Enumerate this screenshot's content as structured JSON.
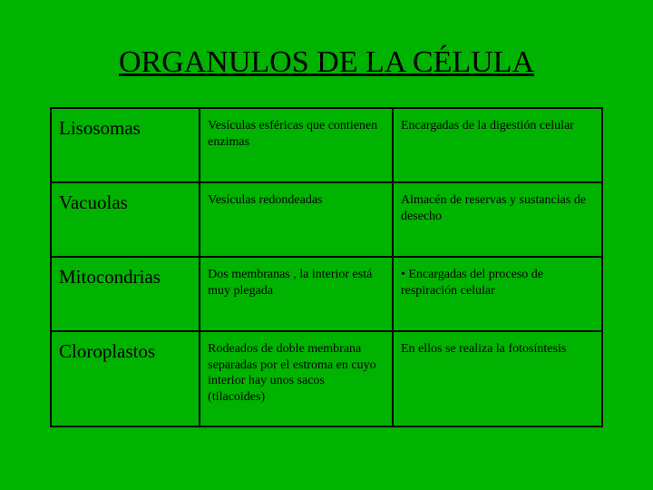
{
  "title": "ORGANULOS DE LA CÉLULA",
  "background_color": "#00b300",
  "border_color": "#000000",
  "text_color": "#000000",
  "title_fontsize": 34,
  "name_fontsize": 21,
  "cell_fontsize": 14,
  "columns": [
    "name",
    "description",
    "function"
  ],
  "rows": [
    {
      "name": "Lisosomas",
      "description": "Vesículas esféricas que contienen enzimas",
      "function": "Encargadas de la digestión celular"
    },
    {
      "name": "Vacuolas",
      "description": "Vesículas redondeadas",
      "function": "Almacén de reservas y sustancias de desecho"
    },
    {
      "name": "Mitocondrias",
      "description": "Dos membranas , la interior está muy plegada",
      "function": "• Encargadas del proceso de respiración celular"
    },
    {
      "name": "Cloroplastos",
      "description": "Rodeados de doble membrana separadas por el estroma en cuyo interior hay unos sacos (tilacoides)",
      "function": "En ellos se realiza la fotosíntesis"
    }
  ]
}
